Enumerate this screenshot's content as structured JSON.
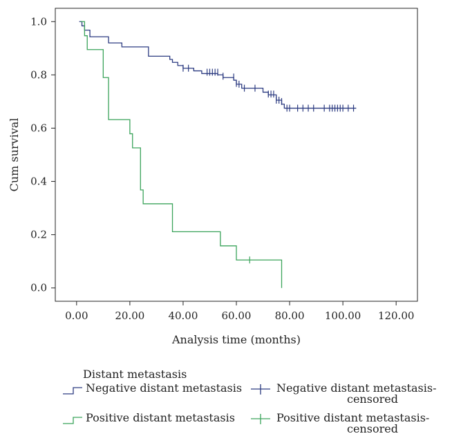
{
  "chart_data": {
    "type": "line",
    "title": "",
    "xlabel": "Analysis time (months)",
    "ylabel": "Cum survival",
    "xlim": [
      -8,
      128
    ],
    "ylim": [
      -0.05,
      1.05
    ],
    "x_ticks": [
      0,
      20,
      40,
      60,
      80,
      100,
      120
    ],
    "x_tick_labels": [
      "0.00",
      "20.00",
      "40.00",
      "60.00",
      "80.00",
      "100.00",
      "120.00"
    ],
    "y_ticks": [
      0.0,
      0.2,
      0.4,
      0.6,
      0.8,
      1.0
    ],
    "y_tick_labels": [
      "0.0",
      "0.2",
      "0.4",
      "0.6",
      "0.8",
      "1.0"
    ],
    "grid": false,
    "legend_position": "bottom",
    "legend_title": "Distant metastasis",
    "series": [
      {
        "name": "Negative distant metastasis",
        "color": "#2b3a80",
        "steps": [
          [
            1,
            1.0
          ],
          [
            2,
            0.984
          ],
          [
            3,
            0.968
          ],
          [
            5,
            0.943
          ],
          [
            12,
            0.92
          ],
          [
            17,
            0.905
          ],
          [
            27,
            0.87
          ],
          [
            35,
            0.858
          ],
          [
            36,
            0.847
          ],
          [
            38,
            0.835
          ],
          [
            40,
            0.825
          ],
          [
            44,
            0.815
          ],
          [
            47,
            0.805
          ],
          [
            53,
            0.8
          ],
          [
            55,
            0.79
          ],
          [
            59,
            0.78
          ],
          [
            60,
            0.765
          ],
          [
            62,
            0.75
          ],
          [
            70,
            0.735
          ],
          [
            72,
            0.725
          ],
          [
            75,
            0.705
          ],
          [
            77,
            0.69
          ],
          [
            78,
            0.675
          ],
          [
            105,
            0.675
          ]
        ],
        "censored": [
          [
            40,
            0.825
          ],
          [
            42,
            0.825
          ],
          [
            49,
            0.81
          ],
          [
            50,
            0.81
          ],
          [
            51,
            0.81
          ],
          [
            52,
            0.81
          ],
          [
            53,
            0.81
          ],
          [
            55,
            0.795
          ],
          [
            59,
            0.792
          ],
          [
            60,
            0.768
          ],
          [
            61,
            0.765
          ],
          [
            63,
            0.75
          ],
          [
            67,
            0.75
          ],
          [
            72,
            0.728
          ],
          [
            73,
            0.728
          ],
          [
            74,
            0.728
          ],
          [
            75,
            0.705
          ],
          [
            76,
            0.705
          ],
          [
            77,
            0.7
          ],
          [
            79,
            0.675
          ],
          [
            80,
            0.675
          ],
          [
            83,
            0.675
          ],
          [
            85,
            0.675
          ],
          [
            87,
            0.675
          ],
          [
            89,
            0.675
          ],
          [
            93,
            0.675
          ],
          [
            95,
            0.675
          ],
          [
            96,
            0.675
          ],
          [
            97,
            0.675
          ],
          [
            98,
            0.675
          ],
          [
            99,
            0.675
          ],
          [
            100,
            0.675
          ],
          [
            102,
            0.675
          ],
          [
            104,
            0.675
          ]
        ]
      },
      {
        "name": "Positive distant metastasis",
        "color": "#3aa35a",
        "steps": [
          [
            1.5,
            1.0
          ],
          [
            3,
            0.947
          ],
          [
            4,
            0.895
          ],
          [
            10,
            0.79
          ],
          [
            12,
            0.632
          ],
          [
            20,
            0.579
          ],
          [
            21,
            0.526
          ],
          [
            24,
            0.368
          ],
          [
            25,
            0.316
          ],
          [
            36,
            0.211
          ],
          [
            54,
            0.158
          ],
          [
            60,
            0.105
          ],
          [
            77,
            0.105
          ],
          [
            77,
            0.0
          ]
        ],
        "censored": [
          [
            65,
            0.105
          ]
        ]
      }
    ],
    "legend": [
      {
        "label": "Negative distant metastasis",
        "kind": "line",
        "series": 0
      },
      {
        "label": "Negative distant metastasis-",
        "label2": "censored",
        "kind": "censored",
        "series": 0
      },
      {
        "label": "Positive distant metastasis",
        "kind": "line",
        "series": 1
      },
      {
        "label": "Positive distant metastasis-",
        "label2": "censored",
        "kind": "censored",
        "series": 1
      }
    ]
  }
}
